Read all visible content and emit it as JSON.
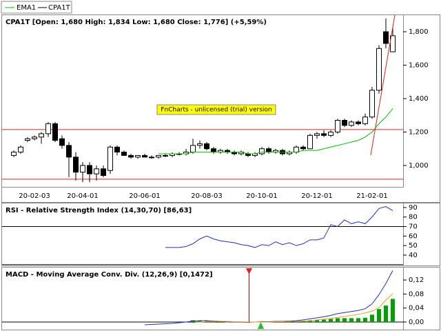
{
  "chart_data": [
    {
      "type": "candlestick",
      "name": "CPA1T",
      "color": "#000000",
      "title": "CPA1T [Open: 1,680  High: 1,834  Low: 1,680  Close: 1,776] (+5,59%)",
      "watermark": "FnCharts - unlicensed (trial) version",
      "categories": [
        null,
        null,
        null,
        "20-02-03",
        null,
        null,
        null,
        null,
        null,
        null,
        "20-04-01",
        null,
        null,
        null,
        null,
        null,
        null,
        null,
        null,
        "20-06-01",
        null,
        null,
        null,
        null,
        null,
        null,
        null,
        null,
        "20-08-03",
        null,
        null,
        null,
        null,
        null,
        null,
        null,
        "20-10-01",
        null,
        null,
        null,
        null,
        null,
        null,
        null,
        "20-12-01",
        null,
        null,
        null,
        null,
        null,
        null,
        null,
        "21-02-01",
        null,
        null,
        null
      ],
      "open": [
        1.06,
        1.08,
        1.15,
        1.16,
        1.17,
        1.19,
        1.25,
        1.16,
        1.12,
        1.05,
        0.96,
        1.0,
        0.95,
        0.98,
        0.97,
        1.11,
        1.08,
        1.06,
        1.05,
        1.06,
        1.05,
        1.05,
        1.06,
        1.06,
        1.07,
        1.07,
        1.08,
        1.12,
        1.13,
        1.1,
        1.08,
        1.09,
        1.08,
        1.07,
        1.07,
        1.06,
        1.07,
        1.1,
        1.08,
        1.09,
        1.07,
        1.08,
        1.11,
        1.1,
        1.18,
        1.19,
        1.18,
        1.2,
        1.27,
        1.24,
        1.26,
        1.25,
        1.29,
        1.45,
        1.8,
        1.68
      ],
      "high": [
        1.09,
        1.12,
        1.17,
        1.18,
        1.2,
        1.26,
        1.26,
        1.18,
        1.14,
        1.08,
        1.02,
        1.02,
        1.0,
        1.0,
        1.12,
        1.12,
        1.09,
        1.07,
        1.06,
        1.07,
        1.06,
        1.06,
        1.07,
        1.08,
        1.08,
        1.1,
        1.16,
        1.15,
        1.14,
        1.11,
        1.1,
        1.1,
        1.09,
        1.09,
        1.08,
        1.08,
        1.11,
        1.11,
        1.1,
        1.1,
        1.09,
        1.12,
        1.12,
        1.19,
        1.2,
        1.21,
        1.21,
        1.28,
        1.28,
        1.27,
        1.27,
        1.31,
        1.47,
        1.72,
        1.88,
        1.834
      ],
      "low": [
        1.05,
        1.07,
        1.14,
        1.15,
        1.13,
        1.17,
        1.14,
        1.1,
        0.93,
        0.91,
        0.9,
        0.9,
        0.91,
        0.93,
        0.95,
        1.06,
        1.06,
        1.04,
        1.04,
        1.05,
        1.04,
        1.04,
        1.05,
        1.05,
        1.06,
        1.06,
        1.07,
        1.1,
        1.09,
        1.07,
        1.07,
        1.07,
        1.06,
        1.06,
        1.05,
        1.05,
        1.06,
        1.07,
        1.07,
        1.06,
        1.06,
        1.07,
        1.09,
        1.1,
        1.16,
        1.17,
        1.17,
        1.19,
        1.23,
        1.23,
        1.24,
        1.24,
        1.28,
        1.43,
        1.7,
        1.68
      ],
      "close": [
        1.08,
        1.11,
        1.16,
        1.17,
        1.19,
        1.25,
        1.15,
        1.12,
        1.05,
        0.96,
        1.0,
        0.95,
        0.98,
        0.94,
        1.11,
        1.08,
        1.06,
        1.05,
        1.06,
        1.05,
        1.05,
        1.06,
        1.06,
        1.07,
        1.07,
        1.08,
        1.12,
        1.13,
        1.1,
        1.08,
        1.09,
        1.08,
        1.07,
        1.08,
        1.06,
        1.07,
        1.1,
        1.08,
        1.09,
        1.07,
        1.08,
        1.11,
        1.1,
        1.18,
        1.19,
        1.18,
        1.2,
        1.27,
        1.24,
        1.26,
        1.25,
        1.29,
        1.45,
        1.7,
        1.73,
        1.776
      ],
      "series": [
        {
          "name": "EMA1",
          "color": "#00c000",
          "values": [
            null,
            null,
            null,
            null,
            null,
            null,
            null,
            null,
            null,
            null,
            null,
            null,
            null,
            null,
            null,
            null,
            null,
            null,
            null,
            null,
            null,
            1.07,
            1.07,
            1.07,
            1.07,
            1.07,
            1.08,
            1.08,
            1.08,
            1.08,
            1.08,
            1.08,
            1.08,
            1.08,
            1.07,
            1.07,
            1.08,
            1.08,
            1.08,
            1.08,
            1.08,
            1.08,
            1.09,
            1.09,
            1.09,
            1.1,
            1.11,
            1.12,
            1.13,
            1.14,
            1.15,
            1.17,
            1.2,
            1.25,
            1.29,
            1.34
          ]
        }
      ],
      "ylim": [
        0.872,
        1.899
      ],
      "yticks": [
        {
          "value": 1.0,
          "label": "1,000"
        },
        {
          "value": 1.2,
          "label": "1,200"
        },
        {
          "value": 1.4,
          "label": "1,400"
        },
        {
          "value": 1.6,
          "label": "1,600"
        },
        {
          "value": 1.8,
          "label": "1,800"
        }
      ],
      "hlines": [
        1.215,
        0.918
      ],
      "hline_color": "#e02020"
    },
    {
      "type": "line",
      "title": "RSI - Relative Strength Index (14,30,70) [86,63]",
      "series": [
        {
          "color": "#2030c0",
          "values": [
            null,
            null,
            null,
            null,
            null,
            null,
            null,
            null,
            null,
            null,
            null,
            null,
            null,
            null,
            null,
            null,
            null,
            null,
            null,
            null,
            null,
            null,
            48,
            48,
            48,
            49,
            52,
            57,
            60,
            57,
            55,
            54,
            53,
            51,
            50,
            48,
            51,
            50,
            54,
            51,
            53,
            50,
            52,
            56,
            56,
            58,
            72,
            70,
            77,
            73,
            75,
            73,
            80,
            89,
            91,
            86.63
          ]
        }
      ],
      "ylim": [
        29.1,
        94.3
      ],
      "yticks": [
        90,
        80,
        70,
        60,
        50,
        40
      ],
      "hlines": [
        70,
        30
      ],
      "hline_color": "#000000"
    },
    {
      "type": "macd",
      "title": "MACD - Moving Average Conv. Div. (12,26,9) [0,1472]",
      "series": [
        {
          "color": "#2030c0",
          "values": [
            null,
            null,
            null,
            null,
            null,
            null,
            null,
            null,
            null,
            null,
            null,
            null,
            null,
            null,
            null,
            null,
            null,
            null,
            null,
            -0.008,
            -0.007,
            -0.006,
            -0.005,
            -0.004,
            -0.002,
            0.0,
            0.003,
            0.004,
            0.004,
            0.003,
            0.002,
            0.001,
            0.0,
            0.0,
            -0.001,
            0.0,
            0.001,
            0.001,
            0.002,
            0.002,
            0.003,
            0.004,
            0.006,
            0.009,
            0.012,
            0.015,
            0.019,
            0.024,
            0.027,
            0.03,
            0.033,
            0.038,
            0.052,
            0.078,
            0.11,
            0.1472
          ]
        },
        {
          "color": "#f0a020",
          "values": [
            null,
            null,
            null,
            null,
            null,
            null,
            null,
            null,
            null,
            null,
            null,
            null,
            null,
            null,
            null,
            null,
            null,
            null,
            null,
            null,
            null,
            null,
            null,
            null,
            null,
            null,
            -0.002,
            0.0,
            0.001,
            0.002,
            0.002,
            0.002,
            0.001,
            0.001,
            0.0,
            0.0,
            0.0,
            0.0,
            0.001,
            0.001,
            0.002,
            0.002,
            0.003,
            0.004,
            0.006,
            0.008,
            0.01,
            0.013,
            0.016,
            0.019,
            0.022,
            0.026,
            0.031,
            0.041,
            0.063,
            0.081
          ]
        }
      ],
      "bars": {
        "color": "#00a000",
        "values": [
          null,
          null,
          null,
          null,
          null,
          null,
          null,
          null,
          null,
          null,
          null,
          null,
          null,
          null,
          null,
          null,
          null,
          null,
          null,
          null,
          null,
          null,
          null,
          null,
          null,
          null,
          0.005,
          0.004,
          0.003,
          0.001,
          0.0,
          -0.001,
          -0.001,
          -0.001,
          -0.001,
          0.0,
          0.001,
          0.001,
          0.001,
          0.001,
          0.001,
          0.002,
          0.003,
          0.005,
          0.006,
          0.007,
          0.009,
          0.011,
          0.011,
          0.011,
          0.011,
          0.012,
          0.021,
          0.037,
          0.047,
          0.066
        ]
      },
      "ylim": [
        -0.0217,
        0.1555
      ],
      "yticks": [
        {
          "value": 0.12,
          "label": "0,12"
        },
        {
          "value": 0.08,
          "label": "0,08"
        },
        {
          "value": 0.04,
          "label": "0,04"
        },
        {
          "value": 0,
          "label": "0,00"
        }
      ],
      "hlines": [
        0
      ],
      "hline_color": "#000000"
    }
  ]
}
